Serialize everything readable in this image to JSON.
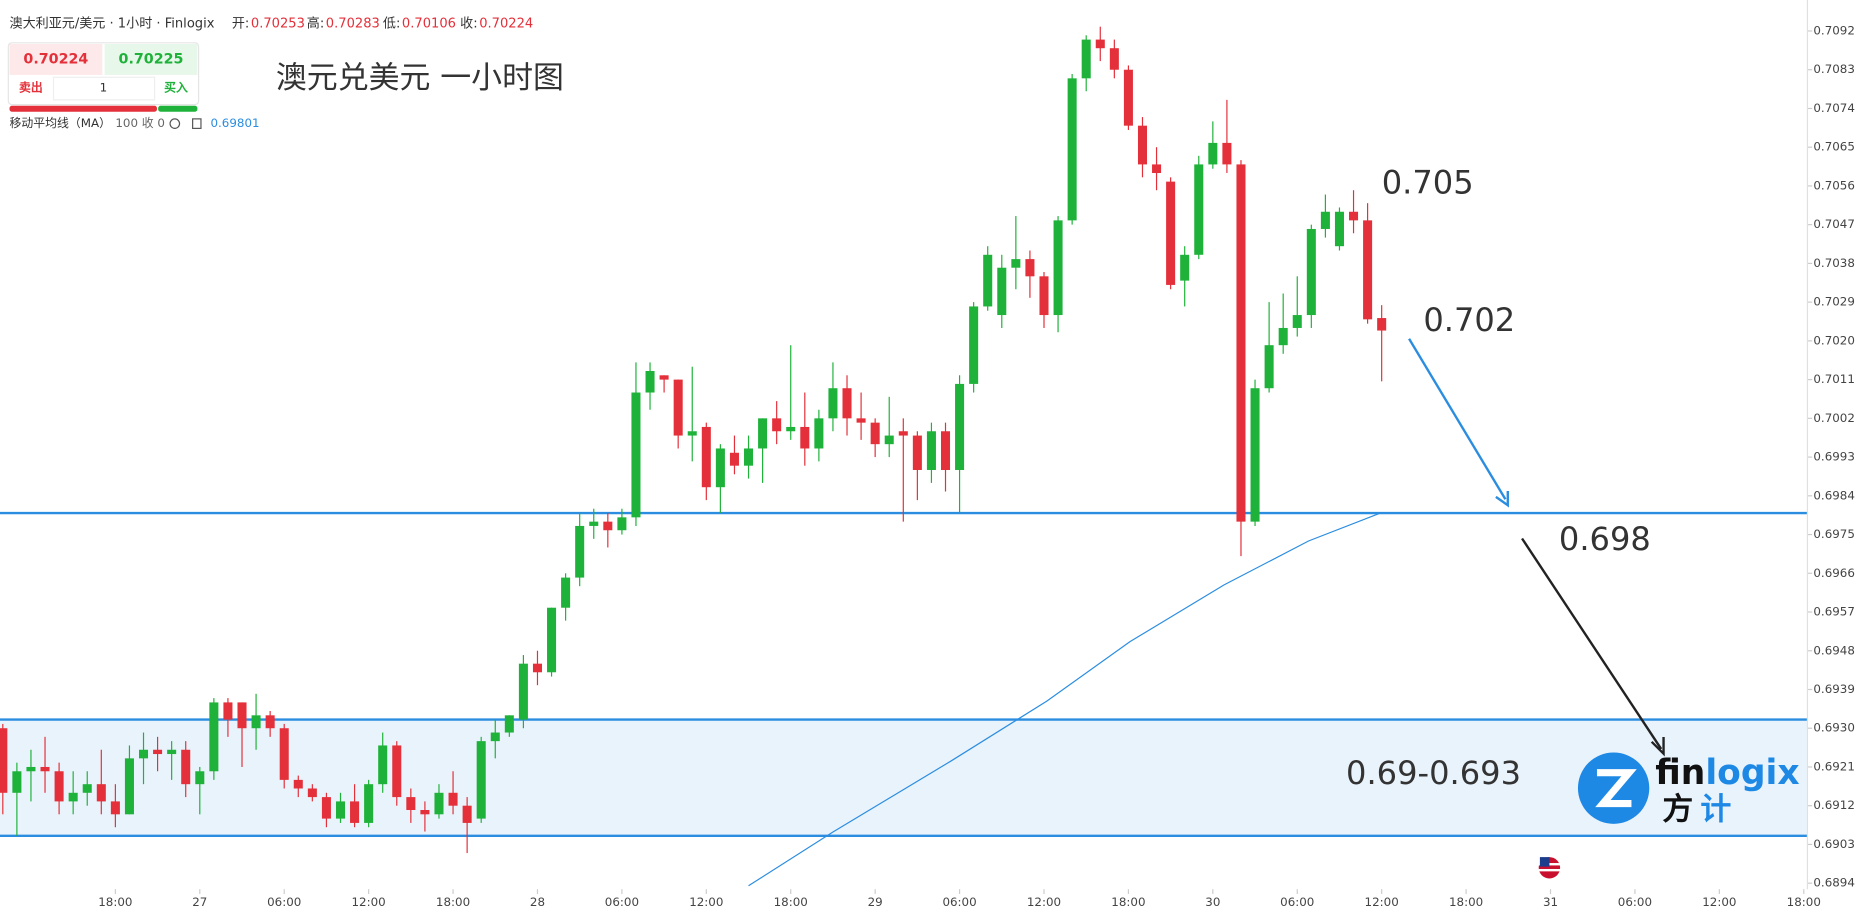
{
  "header": {
    "symbol": "澳大利亚元/美元 · 1小时 · Finlogix",
    "open_label": "开:",
    "high_label": "高:",
    "low_label": "低:",
    "close_label": "收:"
  },
  "widget": {
    "buy_price": 0.70225,
    "sell_label": "卖出",
    "buy_label": "买入",
    "quantity": "1"
  },
  "title": "澳元兑美元 一小时图",
  "logo": {
    "parts": [
      "fin",
      "logix"
    ],
    "cn": [
      "方",
      "计"
    ]
  },
  "chart_data": {
    "type": "candlestick",
    "up_color": "#1fb23a",
    "down_color": "#e3303a",
    "x": [
      10,
      11,
      12,
      13,
      14,
      15,
      16,
      17,
      18,
      19,
      20,
      21,
      22,
      23,
      24,
      25,
      26,
      27,
      28,
      29,
      30,
      31,
      32,
      33,
      34,
      35,
      36,
      37,
      38,
      39,
      40,
      41,
      42,
      43,
      44,
      45,
      46,
      47,
      48,
      49,
      50,
      51,
      52,
      53,
      54,
      55,
      56,
      57,
      58,
      59,
      60,
      61,
      62,
      63,
      64,
      65,
      66,
      67,
      68,
      69,
      70,
      71,
      72,
      73,
      74,
      75,
      76,
      77,
      78,
      79,
      80,
      81,
      82,
      83,
      84,
      85,
      86,
      87,
      88,
      89,
      90,
      91,
      92,
      93,
      94,
      95,
      96,
      97,
      98,
      99,
      100,
      101,
      102,
      103,
      104,
      105,
      106,
      107,
      108
    ],
    "open": [
      0.693,
      0.6915,
      0.692,
      0.6921,
      0.692,
      0.6913,
      0.6915,
      0.6917,
      0.6913,
      0.691,
      0.6923,
      0.6925,
      0.6924,
      0.6925,
      0.6917,
      0.692,
      0.6936,
      0.6936,
      0.693,
      0.6933,
      0.693,
      0.6918,
      0.6916,
      0.6914,
      0.6909,
      0.6913,
      0.6908,
      0.6917,
      0.6926,
      0.6914,
      0.6911,
      0.691,
      0.6915,
      0.6912,
      0.6909,
      0.6927,
      0.6929,
      0.6932,
      0.6945,
      0.6943,
      0.6958,
      0.6965,
      0.6977,
      0.6978,
      0.6976,
      0.6979,
      0.7008,
      0.7012,
      0.7011,
      0.6998,
      0.7,
      0.6986,
      0.6994,
      0.6991,
      0.6995,
      0.7002,
      0.6999,
      0.7,
      0.6995,
      0.7002,
      0.7009,
      0.7002,
      0.7001,
      0.6996,
      0.6999,
      0.6998,
      0.699,
      0.6999,
      0.699,
      0.701,
      0.7028,
      0.7026,
      0.7037,
      0.7039,
      0.7035,
      0.7026,
      0.7048,
      0.7081,
      0.709,
      0.7088,
      0.7083,
      0.707,
      0.7061,
      0.7057,
      0.7034,
      0.704,
      0.7061,
      0.7066,
      0.7061,
      0.6978,
      0.7009,
      0.7019,
      0.7023,
      0.7026,
      0.7046,
      0.7042,
      0.705,
      0.7048,
      0.70253
    ],
    "high": [
      0.6931,
      0.6922,
      0.6925,
      0.6928,
      0.6922,
      0.692,
      0.692,
      0.6925,
      0.6917,
      0.6926,
      0.6929,
      0.6928,
      0.6927,
      0.6927,
      0.6921,
      0.6937,
      0.6937,
      0.6936,
      0.6938,
      0.6934,
      0.6931,
      0.6919,
      0.6917,
      0.6915,
      0.6915,
      0.6917,
      0.6918,
      0.6929,
      0.6927,
      0.6916,
      0.6913,
      0.6917,
      0.692,
      0.6914,
      0.6928,
      0.6932,
      0.6933,
      0.6947,
      0.6948,
      0.6958,
      0.6966,
      0.698,
      0.6981,
      0.698,
      0.6981,
      0.7015,
      0.7015,
      0.7012,
      0.7011,
      0.7014,
      0.7001,
      0.6996,
      0.6998,
      0.6998,
      0.7002,
      0.7006,
      0.7019,
      0.7008,
      0.7004,
      0.7015,
      0.7012,
      0.7008,
      0.7002,
      0.7007,
      0.7002,
      0.6999,
      0.7001,
      0.7001,
      0.7012,
      0.7029,
      0.7042,
      0.704,
      0.7049,
      0.7041,
      0.7036,
      0.7049,
      0.7082,
      0.7091,
      0.7093,
      0.709,
      0.7084,
      0.7072,
      0.7065,
      0.7058,
      0.7042,
      0.7063,
      0.7071,
      0.7076,
      0.7062,
      0.7011,
      0.7029,
      0.7031,
      0.7035,
      0.7047,
      0.7054,
      0.7051,
      0.7055,
      0.7052,
      0.70283
    ],
    "low": [
      0.691,
      0.6905,
      0.6913,
      0.6915,
      0.691,
      0.691,
      0.6912,
      0.691,
      0.6907,
      0.691,
      0.6917,
      0.692,
      0.6918,
      0.6914,
      0.691,
      0.6918,
      0.6928,
      0.6921,
      0.6925,
      0.6928,
      0.6916,
      0.6914,
      0.6913,
      0.6907,
      0.6908,
      0.6907,
      0.6907,
      0.6915,
      0.6912,
      0.6908,
      0.6906,
      0.6909,
      0.691,
      0.6901,
      0.6908,
      0.6923,
      0.6928,
      0.693,
      0.694,
      0.6942,
      0.6955,
      0.6963,
      0.6974,
      0.6972,
      0.6975,
      0.6977,
      0.7004,
      0.7008,
      0.6995,
      0.6992,
      0.6983,
      0.698,
      0.6989,
      0.6988,
      0.6987,
      0.6996,
      0.6997,
      0.6991,
      0.6992,
      0.6999,
      0.6998,
      0.6997,
      0.6993,
      0.6993,
      0.6978,
      0.6983,
      0.6987,
      0.6985,
      0.698,
      0.7008,
      0.7027,
      0.7023,
      0.7032,
      0.703,
      0.7023,
      0.7022,
      0.7047,
      0.7078,
      0.7085,
      0.7081,
      0.7069,
      0.7058,
      0.7055,
      0.7032,
      0.7028,
      0.7039,
      0.706,
      0.7059,
      0.697,
      0.6977,
      0.7008,
      0.7017,
      0.7021,
      0.7023,
      0.7044,
      0.7041,
      0.7045,
      0.7024,
      0.70106
    ],
    "close": [
      0.6915,
      0.692,
      0.6921,
      0.692,
      0.6913,
      0.6915,
      0.6917,
      0.6913,
      0.691,
      0.6923,
      0.6925,
      0.6924,
      0.6925,
      0.6917,
      0.692,
      0.6936,
      0.6932,
      0.693,
      0.6933,
      0.693,
      0.6918,
      0.6916,
      0.6914,
      0.6909,
      0.6913,
      0.6908,
      0.6917,
      0.6926,
      0.6914,
      0.6911,
      0.691,
      0.6915,
      0.6912,
      0.6908,
      0.6927,
      0.6929,
      0.6933,
      0.6945,
      0.6943,
      0.6958,
      0.6965,
      0.6977,
      0.6978,
      0.6976,
      0.6979,
      0.7008,
      0.7013,
      0.7011,
      0.6998,
      0.6999,
      0.6986,
      0.6995,
      0.6991,
      0.6995,
      0.7002,
      0.6999,
      0.7,
      0.6995,
      0.7002,
      0.7009,
      0.7002,
      0.7001,
      0.6996,
      0.6998,
      0.6998,
      0.699,
      0.6999,
      0.699,
      0.701,
      0.7028,
      0.704,
      0.7037,
      0.7039,
      0.7035,
      0.7026,
      0.7048,
      0.7081,
      0.709,
      0.7088,
      0.7083,
      0.707,
      0.7061,
      0.7059,
      0.7033,
      0.704,
      0.7061,
      0.7066,
      0.7061,
      0.6978,
      0.7009,
      0.7019,
      0.7023,
      0.7026,
      0.7046,
      0.705,
      0.705,
      0.7048,
      0.7025,
      0.70224
    ],
    "ma": {
      "name": "移动平均线（MA）",
      "params": "100 收 0",
      "color": "#2b8de0",
      "x": [
        63,
        69,
        77.4,
        84.2,
        90.1,
        96.8,
        102.8,
        108
      ],
      "values": [
        0.68934,
        0.69059,
        0.69224,
        0.69363,
        0.69501,
        0.69633,
        0.69735,
        0.69801
      ]
    },
    "hlines": [
      0.698
    ],
    "band": [
      0.6905,
      0.6932
    ],
    "level_color": "#2b8de0",
    "annotations": [
      "0.705",
      "0.702",
      "0.698",
      "0.69-0.693"
    ],
    "xlim": [
      9.8,
      138.26
    ],
    "ylim": [
      0.68926,
      0.70992
    ],
    "xticks": [
      {
        "value": 18,
        "label": "18:00"
      },
      {
        "value": 24,
        "label": "27"
      },
      {
        "value": 30,
        "label": "06:00"
      },
      {
        "value": 36,
        "label": "12:00"
      },
      {
        "value": 42,
        "label": "18:00"
      },
      {
        "value": 48,
        "label": "28"
      },
      {
        "value": 54,
        "label": "06:00"
      },
      {
        "value": 60,
        "label": "12:00"
      },
      {
        "value": 66,
        "label": "18:00"
      },
      {
        "value": 72,
        "label": "29"
      },
      {
        "value": 78,
        "label": "06:00"
      },
      {
        "value": 84,
        "label": "12:00"
      },
      {
        "value": 90,
        "label": "18:00"
      },
      {
        "value": 96,
        "label": "30"
      },
      {
        "value": 102,
        "label": "06:00"
      },
      {
        "value": 108,
        "label": "12:00"
      },
      {
        "value": 114,
        "label": "18:00"
      },
      {
        "value": 120,
        "label": "31"
      },
      {
        "value": 126,
        "label": "06:00"
      },
      {
        "value": 132,
        "label": "12:00"
      },
      {
        "value": 138,
        "label": "18:00"
      }
    ],
    "yticks": [
      {
        "value": 0.7092,
        "label": "0.70920"
      },
      {
        "value": 0.7083,
        "label": "0.70830"
      },
      {
        "value": 0.7074,
        "label": "0.70740"
      },
      {
        "value": 0.7065,
        "label": "0.70650"
      },
      {
        "value": 0.7056,
        "label": "0.70560"
      },
      {
        "value": 0.7047,
        "label": "0.70470"
      },
      {
        "value": 0.7038,
        "label": "0.70380"
      },
      {
        "value": 0.7029,
        "label": "0.70290"
      },
      {
        "value": 0.702,
        "label": "0.70200"
      },
      {
        "value": 0.7011,
        "label": "0.70110"
      },
      {
        "value": 0.7002,
        "label": "0.70020"
      },
      {
        "value": 0.6993,
        "label": "0.69930"
      },
      {
        "value": 0.6984,
        "label": "0.69840"
      },
      {
        "value": 0.6975,
        "label": "0.69750"
      },
      {
        "value": 0.6966,
        "label": "0.69660"
      },
      {
        "value": 0.6957,
        "label": "0.69570"
      },
      {
        "value": 0.6948,
        "label": "0.69480"
      },
      {
        "value": 0.6939,
        "label": "0.69390"
      },
      {
        "value": 0.693,
        "label": "0.69300"
      },
      {
        "value": 0.6921,
        "label": "0.69210"
      },
      {
        "value": 0.6912,
        "label": "0.69120"
      },
      {
        "value": 0.6903,
        "label": "0.69030"
      },
      {
        "value": 0.6894,
        "label": "0.68940"
      }
    ]
  }
}
